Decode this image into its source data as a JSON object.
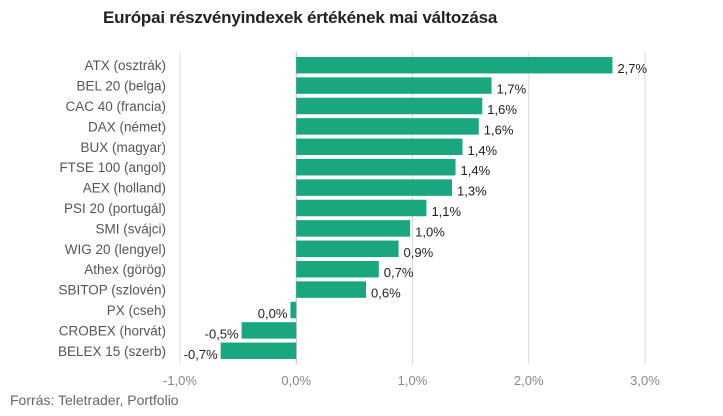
{
  "title": "Európai részvényindexek értékének mai változása",
  "source": "Forrás: Teletrader, Portfolio",
  "colors": {
    "bar": "#1aa67e",
    "grid": "#d9d9d9",
    "zero_line": "#bbbbbb"
  },
  "chart_data": {
    "type": "bar",
    "orientation": "horizontal",
    "title": "Európai részvényindexek értékének mai változása",
    "xlabel": "",
    "ylabel": "",
    "xlim": [
      -1.0,
      3.0
    ],
    "grid": "vertical",
    "categories": [
      "ATX (osztrák)",
      "BEL 20 (belga)",
      "CAC 40 (francia)",
      "DAX (német)",
      "BUX (magyar)",
      "FTSE 100 (angol)",
      "AEX (holland)",
      "PSI 20 (portugál)",
      "SMI (svájci)",
      "WIG 20 (lengyel)",
      "Athex (görög)",
      "SBITOP (szlovén)",
      "PX (cseh)",
      "CROBEX (horvát)",
      "BELEX 15 (szerb)"
    ],
    "values": [
      2.72,
      1.68,
      1.6,
      1.57,
      1.43,
      1.37,
      1.34,
      1.12,
      0.98,
      0.88,
      0.71,
      0.6,
      -0.05,
      -0.47,
      -0.65
    ],
    "value_labels": [
      "2,7%",
      "1,7%",
      "1,6%",
      "1,6%",
      "1,4%",
      "1,4%",
      "1,3%",
      "1,1%",
      "1,0%",
      "0,9%",
      "0,7%",
      "0,6%",
      "0,0%",
      "-0,5%",
      "-0,7%"
    ],
    "ticks": [
      -1.0,
      0.0,
      1.0,
      2.0,
      3.0
    ],
    "tick_labels": [
      "-1,0%",
      "0,0%",
      "1,0%",
      "2,0%",
      "3,0%"
    ]
  }
}
